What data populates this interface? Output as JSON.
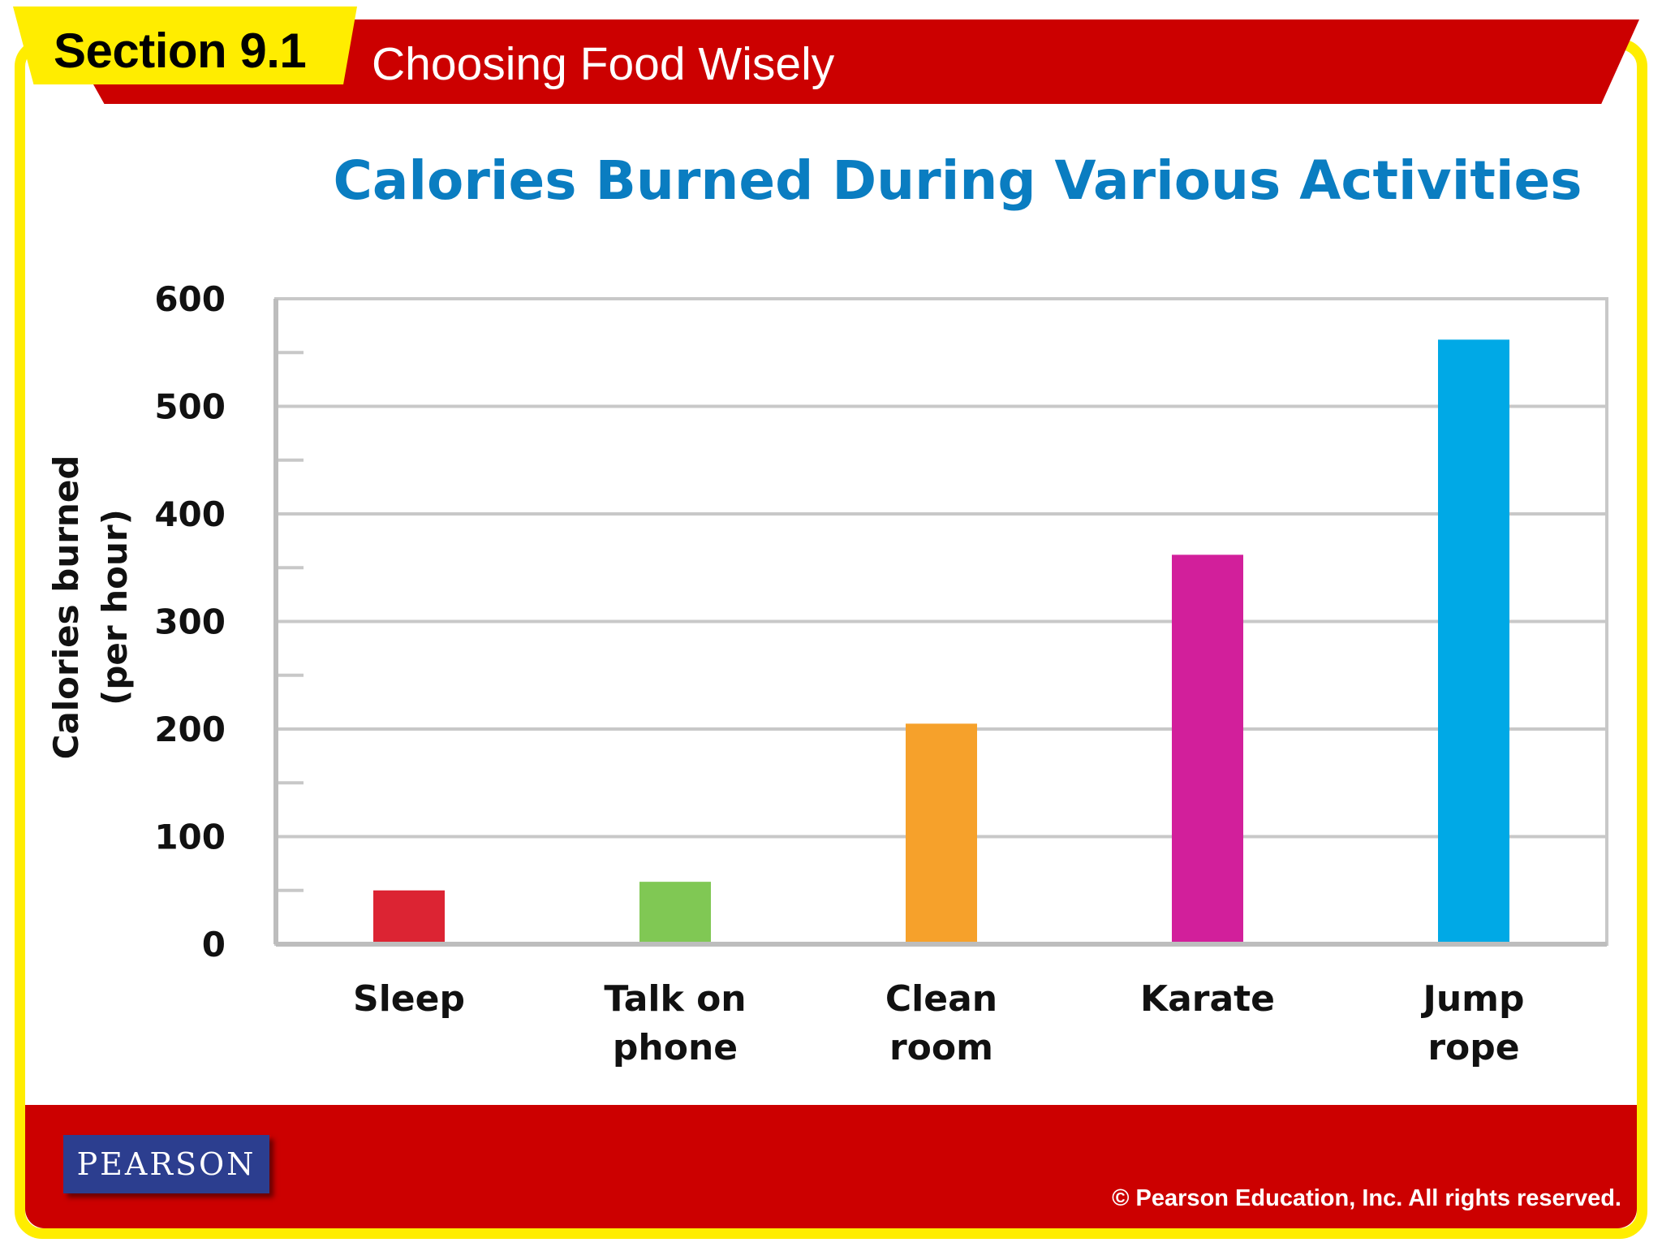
{
  "header": {
    "section_label": "Section 9.1",
    "section_title": "Choosing Food Wisely"
  },
  "footer": {
    "logo_text": "PEARSON",
    "copyright": "© Pearson Education, Inc. All rights reserved."
  },
  "chart_data": {
    "type": "bar",
    "title": "Calories Burned During Various Activities",
    "ylabel_lines": [
      "Calories burned",
      "(per hour)"
    ],
    "xlabel": "",
    "categories": [
      [
        "Sleep"
      ],
      [
        "Talk on",
        "phone"
      ],
      [
        "Clean",
        "room"
      ],
      [
        "Karate"
      ],
      [
        "Jump",
        "rope"
      ]
    ],
    "values": [
      50,
      58,
      205,
      362,
      562
    ],
    "ylim": [
      0,
      600
    ],
    "yticks": [
      0,
      100,
      200,
      300,
      400,
      500,
      600
    ],
    "grid": true,
    "colors": [
      "#dc2433",
      "#80c854",
      "#f6a12b",
      "#d21f9b",
      "#00a9e6"
    ]
  }
}
